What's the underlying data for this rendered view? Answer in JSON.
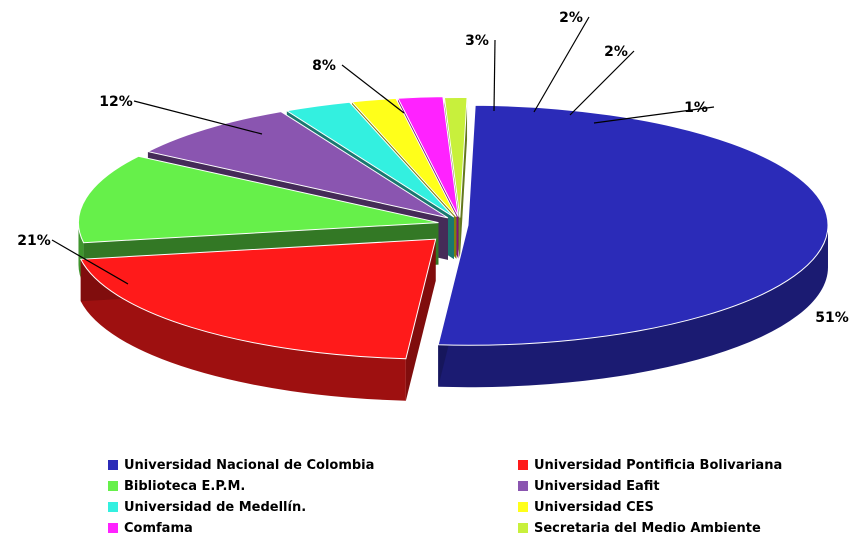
{
  "chart_data": {
    "type": "pie",
    "title": "",
    "categories": [
      "Universidad Nacional de Colombia",
      "Universidad Pontificia Bolivariana",
      "Biblioteca E.P.M.",
      "Universidad Eafit",
      "Universidad de Medellín.",
      "Universidad CES",
      "Comfama",
      "Secretaria del Medio Ambiente"
    ],
    "values": [
      51,
      21,
      12,
      8,
      3,
      2,
      2,
      1
    ],
    "data_labels": [
      "51%",
      "21%",
      "12%",
      "8%",
      "3%",
      "2%",
      "2%",
      "1%"
    ],
    "colors": [
      "#2b2bb8",
      "#ff1a1a",
      "#66f04a",
      "#8a55b0",
      "#33f0e0",
      "#ffff1a",
      "#ff22ff",
      "#c8f03c"
    ],
    "legend_position": "bottom"
  }
}
